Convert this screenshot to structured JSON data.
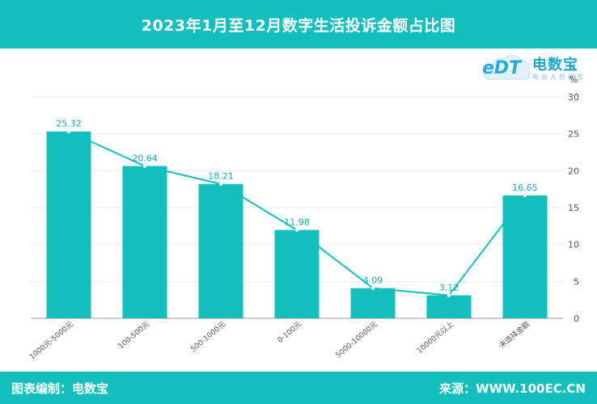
{
  "title": "2023年1月至12月数字生活投诉金额占比图",
  "footer": {
    "left": "图表编制：电数宝",
    "right": "来源：WWW.100EC.CN"
  },
  "logo": {
    "brand": "电数宝",
    "sub": "电商大数据库",
    "mark": "eDT"
  },
  "colors": {
    "bar": "#13bfbd",
    "line": "#13bfbd",
    "header": "#13bfbd"
  },
  "chart_data": {
    "type": "bar",
    "categories": [
      "1000元-5000元",
      "100-500元",
      "500-1000元",
      "0-100元",
      "5000-10000元",
      "10000元以上",
      "未选择金额"
    ],
    "values": [
      25.32,
      20.64,
      18.21,
      11.98,
      4.09,
      3.12,
      16.65
    ],
    "line_overlay": true,
    "unit": "%",
    "ylim": [
      0,
      30
    ],
    "yticks": [
      0,
      5,
      10,
      15,
      20,
      25,
      30
    ],
    "y_axis_side": "right",
    "grid": true,
    "title": "2023年1月至12月数字生活投诉金额占比图"
  }
}
